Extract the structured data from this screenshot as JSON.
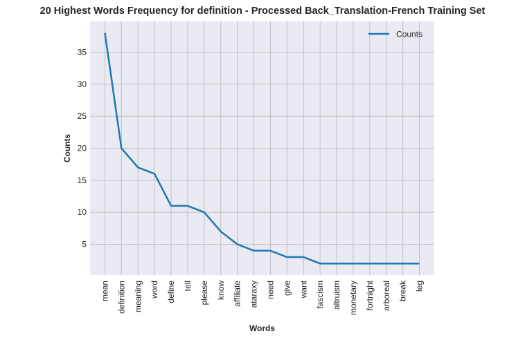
{
  "chart_data": {
    "type": "line",
    "title": "20 Highest Words Frequency for definition - Processed Back_Translation-French Training Set",
    "xlabel": "Words",
    "ylabel": "Counts",
    "categories": [
      "mean",
      "definition",
      "meaning",
      "word",
      "define",
      "tell",
      "please",
      "know",
      "affiliate",
      "ataraxy",
      "need",
      "give",
      "want",
      "fascism",
      "altruism",
      "monetary",
      "fortnight",
      "arboreal",
      "break",
      "leg"
    ],
    "series": [
      {
        "name": "Counts",
        "values": [
          38,
          20,
          17,
          16,
          11,
          11,
          10,
          7,
          5,
          4,
          4,
          3,
          3,
          2,
          2,
          2,
          2,
          2,
          2,
          2
        ]
      }
    ],
    "ylim": [
      0.2,
      39.8
    ],
    "yticks": [
      5,
      10,
      15,
      20,
      25,
      30,
      35
    ],
    "grid": true,
    "legend_position": "upper-right",
    "colors": {
      "line": "#1f77b4",
      "plot_bg": "#eaeaf2",
      "grid": "#c0c0c0"
    }
  }
}
